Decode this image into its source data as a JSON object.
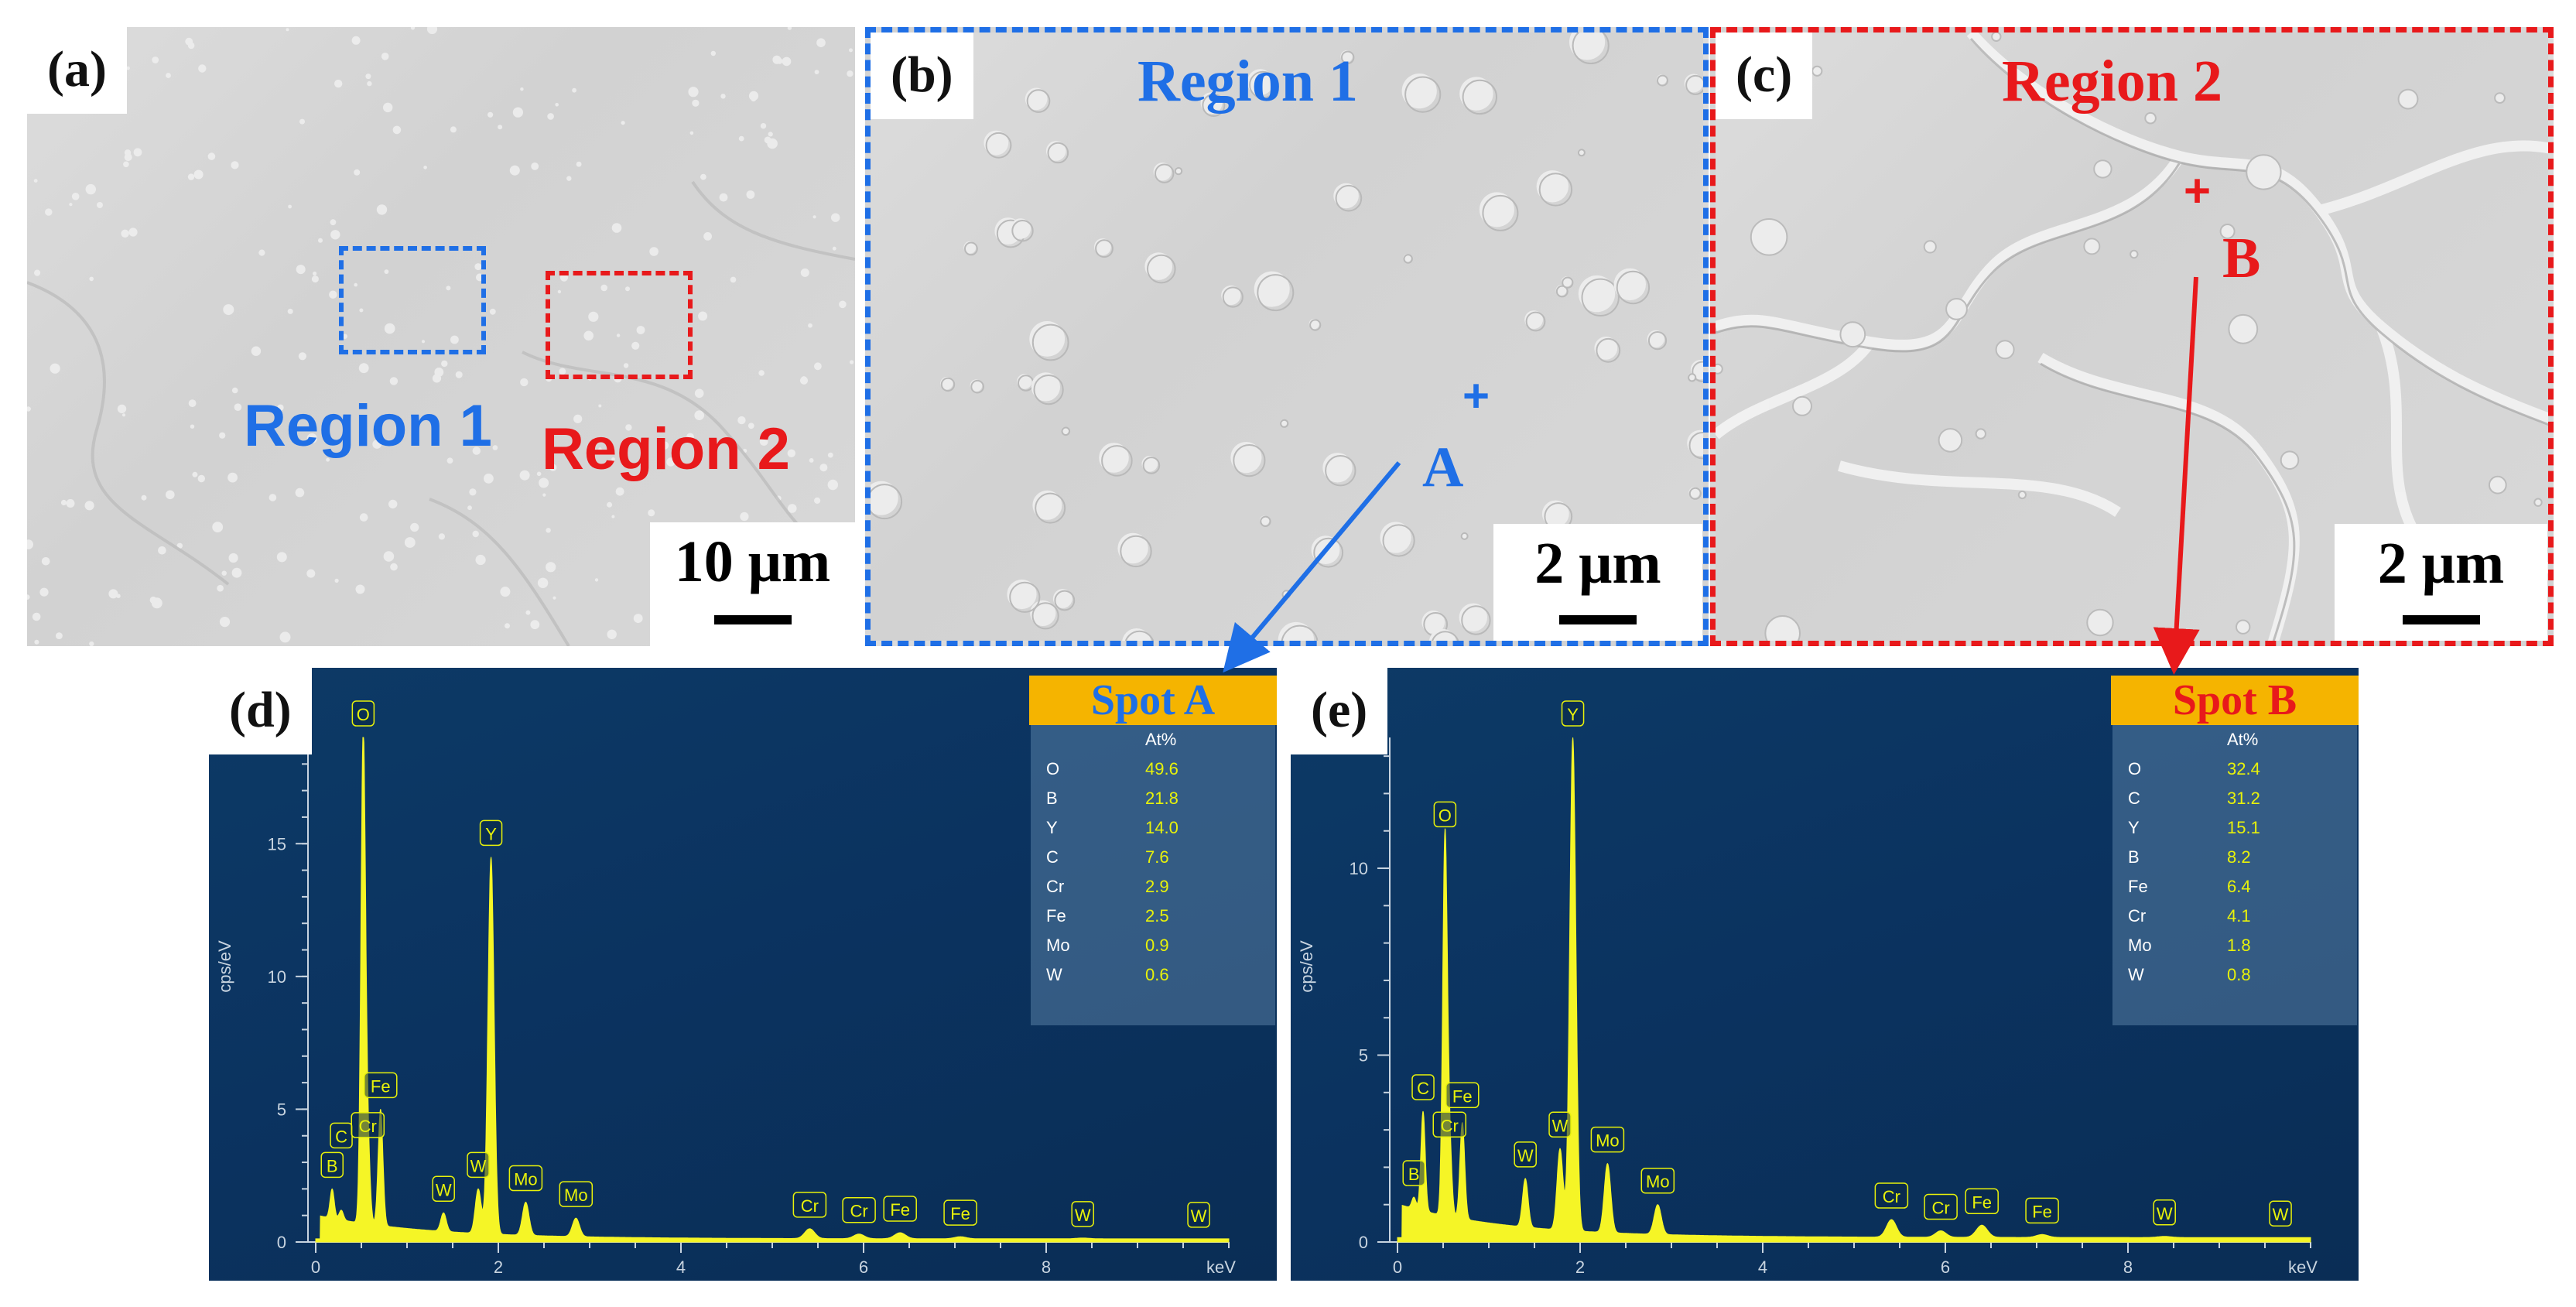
{
  "panels": {
    "a": {
      "tag": "(a)",
      "scale": "10 μm",
      "region1": "Region 1",
      "region2": "Region 2"
    },
    "b": {
      "tag": "(b)",
      "title": "Region 1",
      "scale": "2 μm",
      "spot": "A"
    },
    "c": {
      "tag": "(c)",
      "title": "Region 2",
      "scale": "2 μm",
      "spot": "B"
    }
  },
  "colors": {
    "blue": "#1f6fe6",
    "red": "#e8191b",
    "spec_bg": "#0b3360",
    "spec_fill": "#f5f526",
    "title_bg": "#f5b400"
  },
  "chart_data": [
    {
      "type": "line",
      "panel_tag": "(d)",
      "spot_title": "Spot A",
      "ylabel": "cps/eV",
      "xlabel": "keV",
      "xlim": [
        0,
        10
      ],
      "ylim": [
        0,
        19
      ],
      "xticks": [
        0,
        2,
        4,
        6,
        8
      ],
      "yticks": [
        0,
        5,
        10,
        15
      ],
      "peaks": [
        {
          "label": "B",
          "x": 0.18,
          "y": 2.0
        },
        {
          "label": "C",
          "x": 0.28,
          "y": 1.2
        },
        {
          "label": "O",
          "x": 0.52,
          "y": 19.0
        },
        {
          "label": "Cr",
          "x": 0.57,
          "y": 3.5
        },
        {
          "label": "Fe",
          "x": 0.71,
          "y": 5.0
        },
        {
          "label": "W",
          "x": 1.78,
          "y": 2.0
        },
        {
          "label": "Y",
          "x": 1.92,
          "y": 14.5
        },
        {
          "label": "W",
          "x": 1.4,
          "y": 1.1
        },
        {
          "label": "Mo",
          "x": 2.3,
          "y": 1.5
        },
        {
          "label": "Mo",
          "x": 2.85,
          "y": 0.9
        },
        {
          "label": "Cr",
          "x": 5.41,
          "y": 0.5
        },
        {
          "label": "Cr",
          "x": 5.95,
          "y": 0.3
        },
        {
          "label": "Fe",
          "x": 6.4,
          "y": 0.35
        },
        {
          "label": "Fe",
          "x": 7.06,
          "y": 0.2
        },
        {
          "label": "W",
          "x": 8.4,
          "y": 0.15
        },
        {
          "label": "W",
          "x": 9.67,
          "y": 0.12
        }
      ],
      "table": {
        "header": "At%",
        "rows": [
          {
            "el": "O",
            "val": "49.6"
          },
          {
            "el": "B",
            "val": "21.8"
          },
          {
            "el": "Y",
            "val": "14.0"
          },
          {
            "el": "C",
            "val": "7.6"
          },
          {
            "el": "Cr",
            "val": "2.9"
          },
          {
            "el": "Fe",
            "val": "2.5"
          },
          {
            "el": "Mo",
            "val": "0.9"
          },
          {
            "el": "W",
            "val": "0.6"
          }
        ]
      }
    },
    {
      "type": "line",
      "panel_tag": "(e)",
      "spot_title": "Spot B",
      "ylabel": "cps/eV",
      "xlabel": "keV",
      "xlim": [
        0,
        10
      ],
      "ylim": [
        0,
        13.5
      ],
      "xticks": [
        0,
        2,
        4,
        6,
        8
      ],
      "yticks": [
        0,
        5,
        10
      ],
      "peaks": [
        {
          "label": "B",
          "x": 0.18,
          "y": 1.2
        },
        {
          "label": "C",
          "x": 0.28,
          "y": 3.5
        },
        {
          "label": "O",
          "x": 0.52,
          "y": 10.8
        },
        {
          "label": "Cr",
          "x": 0.57,
          "y": 2.5
        },
        {
          "label": "Fe",
          "x": 0.71,
          "y": 3.2
        },
        {
          "label": "W",
          "x": 1.4,
          "y": 1.7
        },
        {
          "label": "W",
          "x": 1.78,
          "y": 2.5
        },
        {
          "label": "Y",
          "x": 1.92,
          "y": 13.5
        },
        {
          "label": "Mo",
          "x": 2.3,
          "y": 2.1
        },
        {
          "label": "Mo",
          "x": 2.85,
          "y": 1.0
        },
        {
          "label": "Cr",
          "x": 5.41,
          "y": 0.6
        },
        {
          "label": "Cr",
          "x": 5.95,
          "y": 0.3
        },
        {
          "label": "Fe",
          "x": 6.4,
          "y": 0.45
        },
        {
          "label": "Fe",
          "x": 7.06,
          "y": 0.2
        },
        {
          "label": "W",
          "x": 8.4,
          "y": 0.15
        },
        {
          "label": "W",
          "x": 9.67,
          "y": 0.12
        }
      ],
      "table": {
        "header": "At%",
        "rows": [
          {
            "el": "O",
            "val": "32.4"
          },
          {
            "el": "C",
            "val": "31.2"
          },
          {
            "el": "Y",
            "val": "15.1"
          },
          {
            "el": "B",
            "val": "8.2"
          },
          {
            "el": "Fe",
            "val": "6.4"
          },
          {
            "el": "Cr",
            "val": "4.1"
          },
          {
            "el": "Mo",
            "val": "1.8"
          },
          {
            "el": "W",
            "val": "0.8"
          }
        ]
      }
    }
  ]
}
